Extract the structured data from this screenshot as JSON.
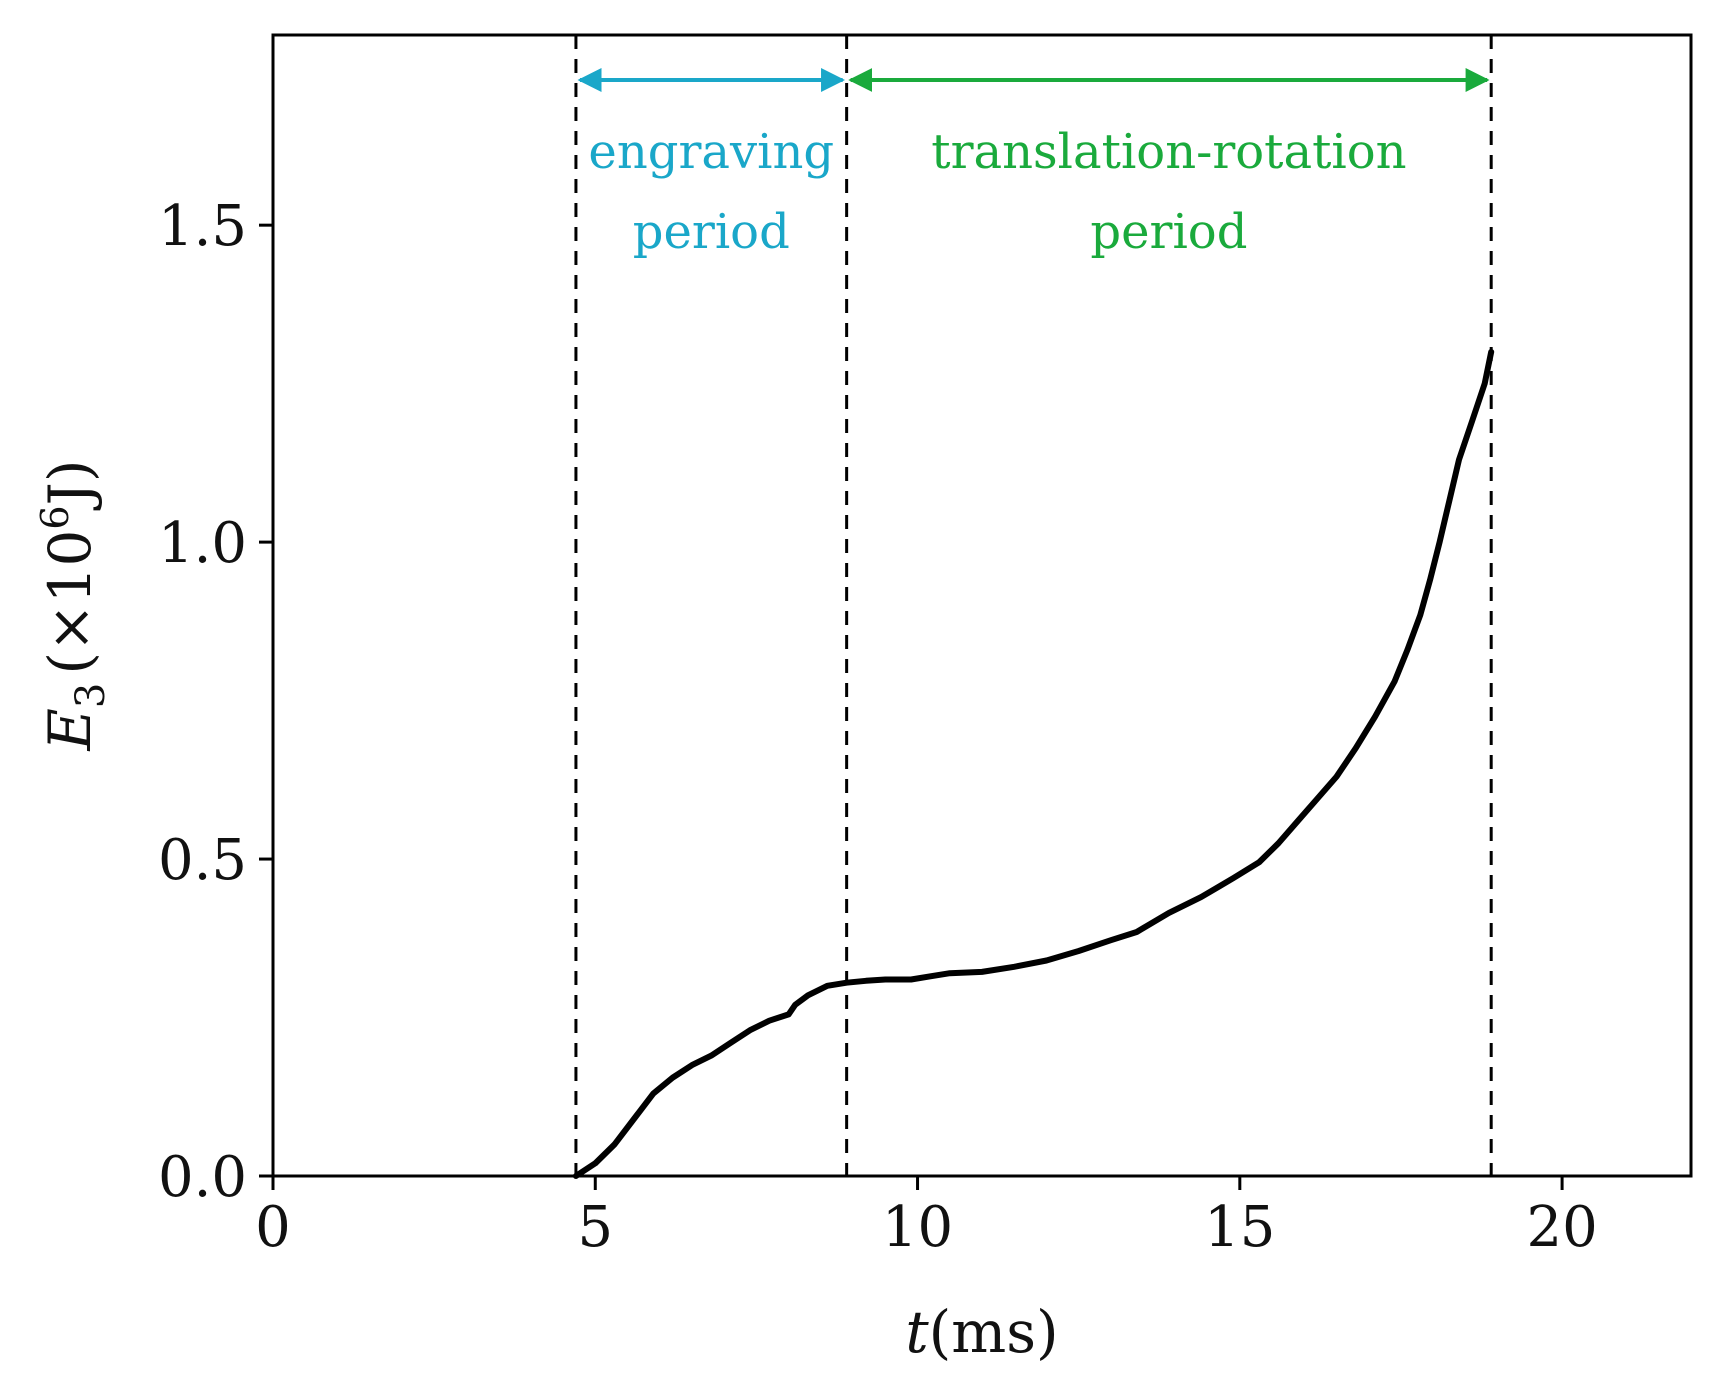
{
  "chart_data": {
    "type": "line",
    "title": "",
    "xlabel_var": "t",
    "xlabel_unit": "(ms)",
    "ylabel_var": "E",
    "ylabel_sub": "3",
    "ylabel_unit_pre": "(×10",
    "ylabel_unit_exp": "6",
    "ylabel_unit_post": "J)",
    "xlim": [
      0,
      22
    ],
    "ylim": [
      0,
      1.8
    ],
    "xticks": [
      0,
      5,
      10,
      15,
      20
    ],
    "xtick_labels": [
      "0",
      "5",
      "10",
      "15",
      "20"
    ],
    "yticks": [
      0.0,
      0.5,
      1.0,
      1.5
    ],
    "ytick_labels": [
      "0.0",
      "0.5",
      "1.0",
      "1.5"
    ],
    "grid": false,
    "series": [
      {
        "name": "E3",
        "color": "#000000",
        "x": [
          4.7,
          5.0,
          5.3,
          5.6,
          5.9,
          6.2,
          6.5,
          6.8,
          7.1,
          7.4,
          7.7,
          8.0,
          8.1,
          8.3,
          8.6,
          8.9,
          9.2,
          9.5,
          9.9,
          10.2,
          10.5,
          11.0,
          11.5,
          12.0,
          12.5,
          13.0,
          13.4,
          13.9,
          14.4,
          14.9,
          15.3,
          15.6,
          15.9,
          16.2,
          16.5,
          16.8,
          17.1,
          17.4,
          17.6,
          17.8,
          17.95,
          18.1,
          18.25,
          18.4,
          18.6,
          18.8,
          18.9
        ],
        "y": [
          0.0,
          0.02,
          0.05,
          0.09,
          0.13,
          0.155,
          0.175,
          0.19,
          0.21,
          0.23,
          0.245,
          0.255,
          0.27,
          0.285,
          0.3,
          0.305,
          0.308,
          0.31,
          0.31,
          0.315,
          0.32,
          0.322,
          0.33,
          0.34,
          0.355,
          0.372,
          0.385,
          0.415,
          0.44,
          0.47,
          0.495,
          0.525,
          0.56,
          0.595,
          0.63,
          0.675,
          0.725,
          0.78,
          0.83,
          0.885,
          0.94,
          1.0,
          1.065,
          1.13,
          1.19,
          1.25,
          1.3
        ]
      }
    ],
    "vlines": [
      4.7,
      8.9,
      18.9
    ],
    "annotations": [
      {
        "label_line1": "engraving",
        "label_line2": "period",
        "x_start": 4.7,
        "x_end": 8.9,
        "color": "#1aa7c9"
      },
      {
        "label_line1": "translation-rotation",
        "label_line2": "period",
        "x_start": 8.9,
        "x_end": 18.9,
        "color": "#1aaa3c"
      }
    ]
  }
}
